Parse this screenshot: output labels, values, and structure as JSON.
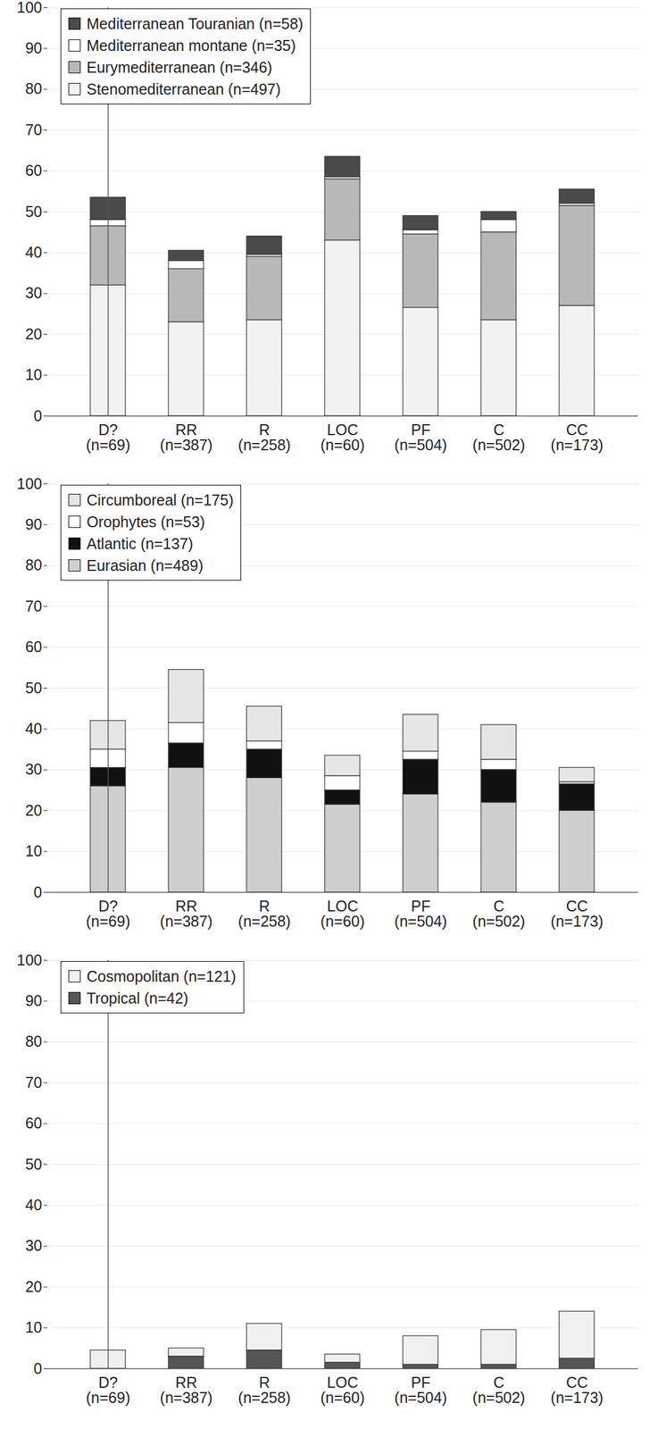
{
  "chart_data": [
    {
      "type": "bar",
      "stacked": true,
      "grid": true,
      "legend": "top-left",
      "categories": [
        "D?\n(n=69)",
        "RR\n(n=387)",
        "R\n(n=258)",
        "LOC\n(n=60)",
        "PF\n(n=504)",
        "C\n(n=502)",
        "CC\n(n=173)"
      ],
      "series": [
        {
          "name": "Stenomediterranean (n=497)",
          "color": "#f2f2f2",
          "values": [
            32,
            23,
            23.5,
            43,
            26.5,
            23.5,
            27
          ]
        },
        {
          "name": "Eurymediterranean (n=346)",
          "color": "#b8b8b8",
          "values": [
            14.5,
            13,
            15.5,
            15,
            18,
            21.5,
            24.5
          ]
        },
        {
          "name": "Mediterranean montane (n=35)",
          "color": "#ffffff",
          "values": [
            1.5,
            2,
            0.5,
            0.5,
            1,
            3,
            0.5
          ]
        },
        {
          "name": "Mediterranean Touranian (n=58)",
          "color": "#4a4a4a",
          "values": [
            5.5,
            2.5,
            4.5,
            5,
            3.5,
            2,
            3.5
          ]
        }
      ],
      "ylim": [
        0,
        100
      ],
      "yticks": [
        0,
        10,
        20,
        30,
        40,
        50,
        60,
        70,
        80,
        90,
        100
      ]
    },
    {
      "type": "bar",
      "stacked": true,
      "grid": true,
      "legend": "top-left",
      "categories": [
        "D?\n(n=69)",
        "RR\n(n=387)",
        "R\n(n=258)",
        "LOC\n(n=60)",
        "PF\n(n=504)",
        "C\n(n=502)",
        "CC\n(n=173)"
      ],
      "series": [
        {
          "name": "Eurasian (n=489)",
          "color": "#cfcfcf",
          "values": [
            26,
            30.5,
            28,
            21.5,
            24,
            22,
            20
          ]
        },
        {
          "name": "Atlantic (n=137)",
          "color": "#111111",
          "values": [
            4.5,
            6,
            7,
            3.5,
            8.5,
            8,
            6.5
          ]
        },
        {
          "name": "Orophytes (n=53)",
          "color": "#ffffff",
          "values": [
            4.5,
            5,
            2,
            3.5,
            2,
            2.5,
            0.5
          ]
        },
        {
          "name": "Circumboreal (n=175)",
          "color": "#e6e6e6",
          "values": [
            7,
            13,
            8.5,
            5,
            9,
            8.5,
            3.5
          ]
        }
      ],
      "ylim": [
        0,
        100
      ],
      "yticks": [
        0,
        10,
        20,
        30,
        40,
        50,
        60,
        70,
        80,
        90,
        100
      ]
    },
    {
      "type": "bar",
      "stacked": true,
      "grid": true,
      "legend": "top-left",
      "categories": [
        "D?\n(n=69)",
        "RR\n(n=387)",
        "R\n(n=258)",
        "LOC\n(n=60)",
        "PF\n(n=504)",
        "C\n(n=502)",
        "CC\n(n=173)"
      ],
      "series": [
        {
          "name": "Tropical (n=42)",
          "color": "#555555",
          "values": [
            0,
            3,
            4.5,
            1.5,
            1,
            1,
            2.5
          ]
        },
        {
          "name": "Cosmopolitan (n=121)",
          "color": "#f0f0f0",
          "values": [
            4.5,
            2,
            6.5,
            2,
            7,
            8.5,
            11.5
          ]
        }
      ],
      "ylim": [
        0,
        100
      ],
      "yticks": [
        0,
        10,
        20,
        30,
        40,
        50,
        60,
        70,
        80,
        90,
        100
      ]
    }
  ]
}
